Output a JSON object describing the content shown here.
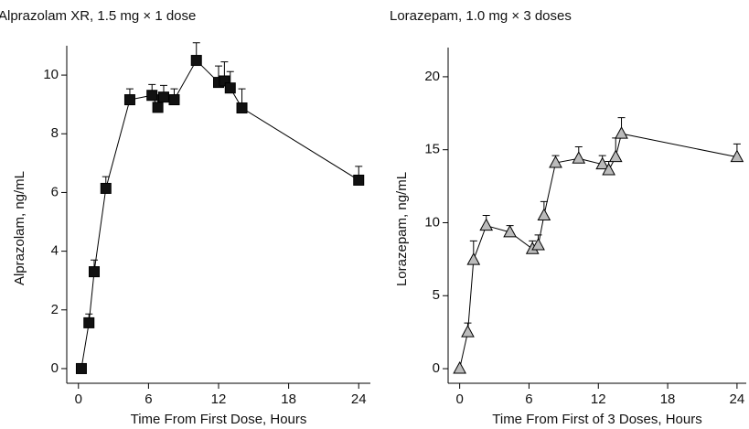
{
  "chart_data": [
    {
      "type": "line",
      "title": "Alprazolam XR, 1.5 mg × 1 dose",
      "x_label": "Time From First Dose, Hours",
      "y_label": "Alprazolam, ng/mL",
      "x": [
        0.25,
        0.9,
        1.35,
        2.35,
        4.4,
        6.3,
        6.8,
        7.3,
        8.2,
        10.1,
        12.0,
        12.5,
        13.0,
        14.0,
        24
      ],
      "values": [
        0,
        1.56,
        3.3,
        6.14,
        9.16,
        9.31,
        8.9,
        9.25,
        9.16,
        10.5,
        9.75,
        9.8,
        9.56,
        8.88,
        6.42
      ],
      "errors": [
        0,
        0.3,
        0.4,
        0.4,
        0.37,
        0.37,
        0.43,
        0.4,
        0.37,
        0.6,
        0.56,
        0.65,
        0.56,
        0.65,
        0.47
      ],
      "color": "#111111",
      "marker": "square",
      "xlim": [
        -1,
        25
      ],
      "ylim": [
        -0.5,
        11
      ],
      "xticks": [
        0,
        6,
        12,
        18,
        24
      ],
      "yticks": [
        0,
        2,
        4,
        6,
        8,
        10
      ]
    },
    {
      "type": "line",
      "title": "Lorazepam, 1.0 mg × 3 doses",
      "x_label": "Time From First of 3 Doses, Hours",
      "y_label": "Lorazepam, ng/mL",
      "x": [
        0,
        0.7,
        1.2,
        2.3,
        4.35,
        6.3,
        6.8,
        7.3,
        8.3,
        10.3,
        12.35,
        12.9,
        13.5,
        14.0,
        24
      ],
      "values": [
        0,
        2.5,
        7.45,
        9.8,
        9.35,
        8.2,
        8.46,
        10.5,
        14.1,
        14.4,
        14.0,
        13.6,
        14.5,
        16.1,
        14.5
      ],
      "errors": [
        0,
        0.63,
        1.3,
        0.7,
        0.45,
        0.55,
        0.7,
        0.95,
        0.5,
        0.8,
        0.6,
        0.6,
        1.3,
        1.1,
        0.9
      ],
      "color": "#bbbbbb",
      "marker": "triangle",
      "xlim": [
        -1,
        24.8
      ],
      "ylim": [
        -1,
        22
      ],
      "xticks": [
        0,
        6,
        12,
        18,
        24
      ],
      "yticks": [
        0,
        5,
        10,
        15,
        20
      ]
    }
  ]
}
